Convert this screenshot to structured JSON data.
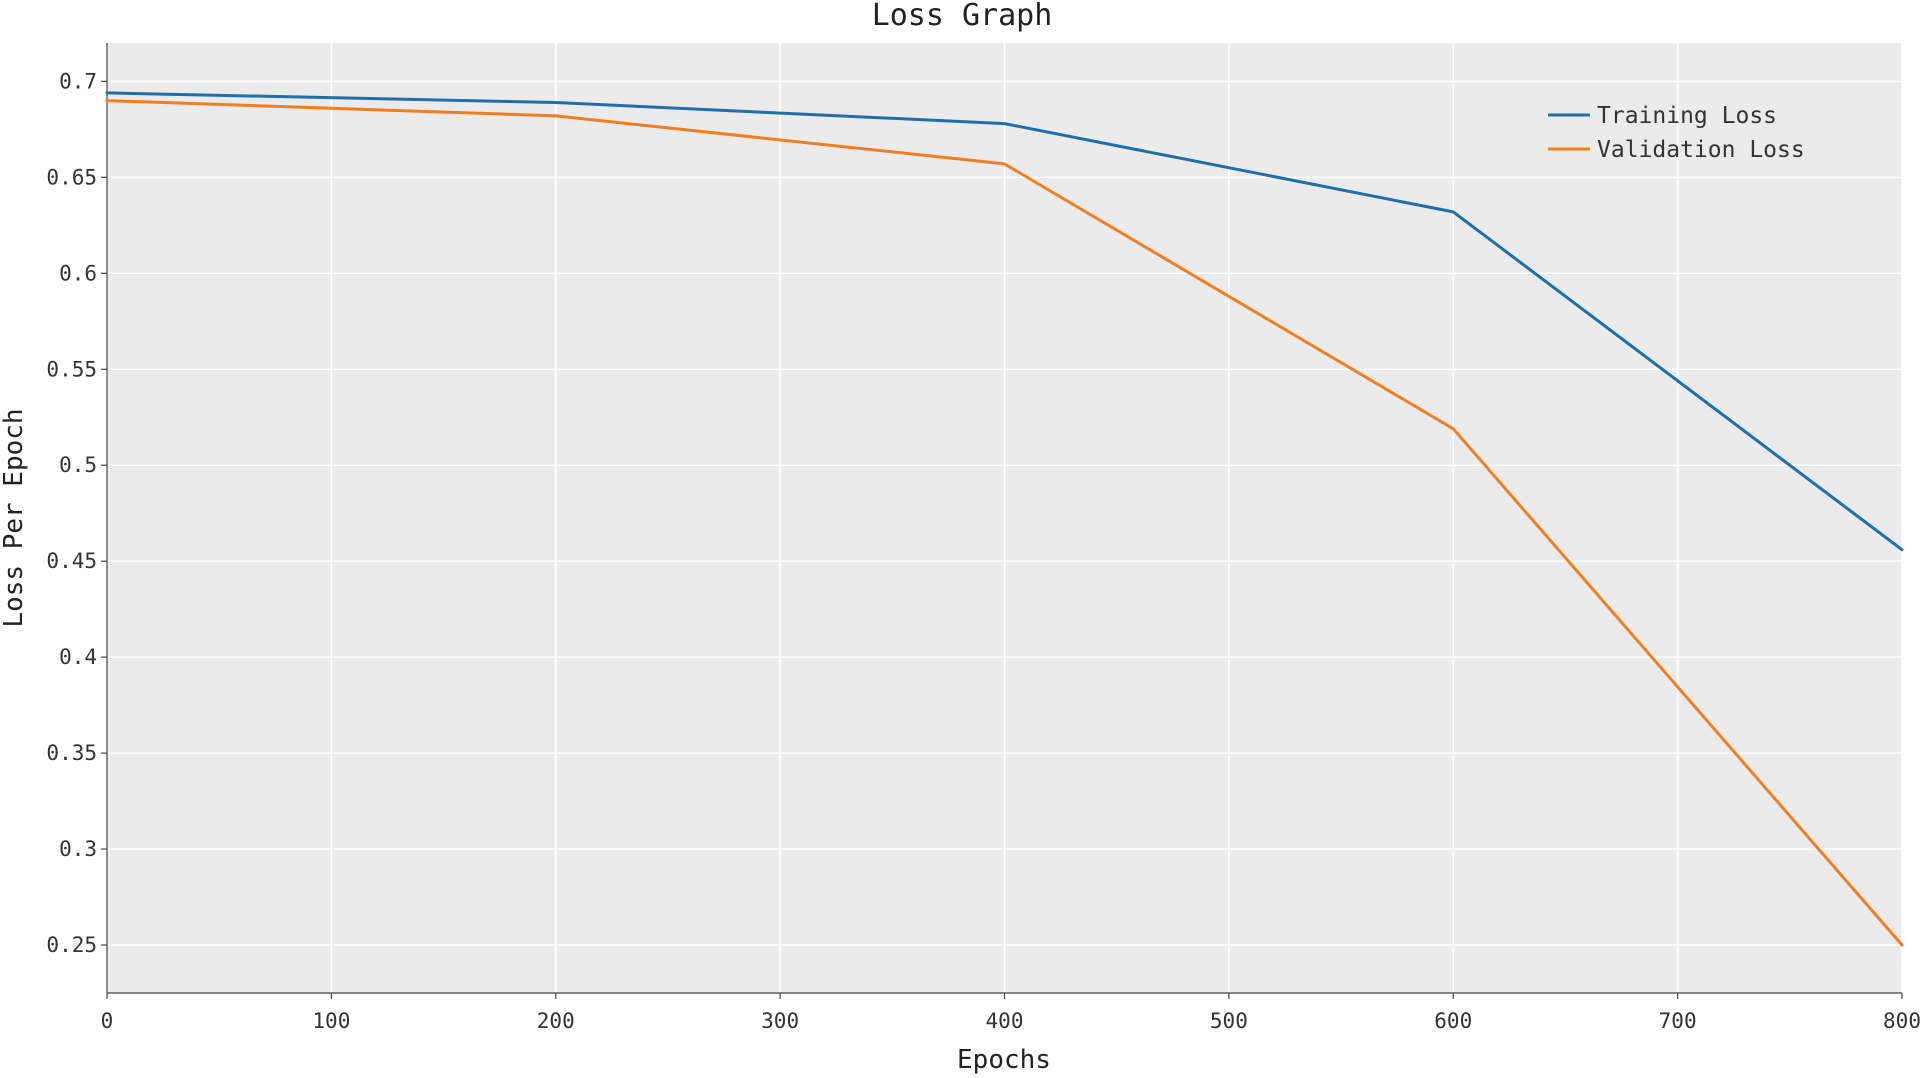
{
  "chart_data": {
    "type": "line",
    "title": "Loss Graph",
    "xlabel": "Epochs",
    "ylabel": "Loss Per Epoch",
    "x": [
      0,
      200,
      400,
      600,
      800
    ],
    "xlim": [
      0,
      800
    ],
    "ylim": [
      0.225,
      0.72
    ],
    "xticks": [
      0,
      100,
      200,
      300,
      400,
      500,
      600,
      700,
      800
    ],
    "yticks": [
      0.25,
      0.3,
      0.35,
      0.4,
      0.45,
      0.5,
      0.55,
      0.6,
      0.65,
      0.7
    ],
    "xtick_labels": [
      "0",
      "100",
      "200",
      "300",
      "400",
      "500",
      "600",
      "700",
      "800"
    ],
    "ytick_labels": [
      "0.25",
      "0.3",
      "0.35",
      "0.4",
      "0.45",
      "0.5",
      "0.55",
      "0.6",
      "0.65",
      "0.7"
    ],
    "grid": true,
    "legend_position": "top-right",
    "background_color": "#ebebeb",
    "series": [
      {
        "name": "Training Loss",
        "color": "#1f6fa8",
        "values": [
          0.694,
          0.689,
          0.678,
          0.632,
          0.456
        ]
      },
      {
        "name": "Validation Loss",
        "color": "#f07f22",
        "values": [
          0.69,
          0.682,
          0.657,
          0.519,
          0.25
        ]
      }
    ]
  }
}
